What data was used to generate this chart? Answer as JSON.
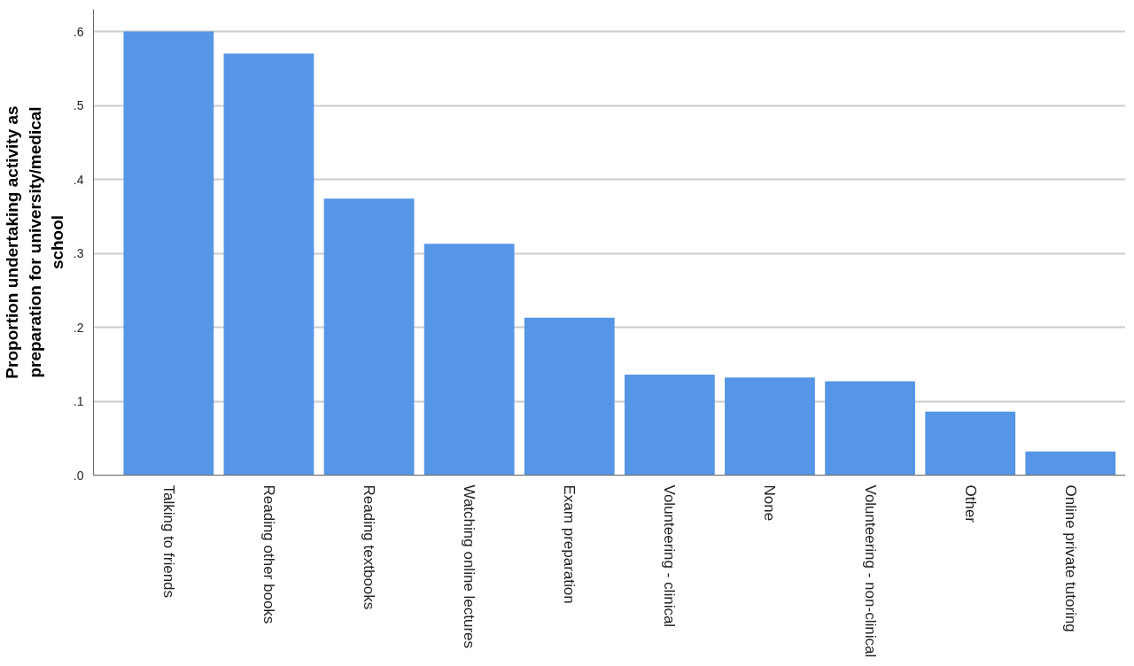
{
  "chart_data": {
    "type": "bar",
    "ylabel": "Proportion undertaking activity as preparation for university/medical school",
    "categories": [
      "Talking to friends",
      "Reading other books",
      "Reading textbooks",
      "Watching online lectures",
      "Exam preparation",
      "Volunteering - clinical",
      "None",
      "Volunteering - non-clinical",
      "Other",
      "Online private tutoring"
    ],
    "values": [
      0.6,
      0.57,
      0.374,
      0.313,
      0.213,
      0.136,
      0.132,
      0.127,
      0.086,
      0.032
    ],
    "color": "#5596e6",
    "ylim": [
      0,
      0.63
    ],
    "yticks": [
      {
        "value": 0,
        "label": ".0"
      },
      {
        "value": 0.1,
        "label": ".1"
      },
      {
        "value": 0.2,
        "label": ".2"
      },
      {
        "value": 0.3,
        "label": ".3"
      },
      {
        "value": 0.4,
        "label": ".4"
      },
      {
        "value": 0.5,
        "label": ".5"
      },
      {
        "value": 0.6,
        "label": ".6"
      }
    ],
    "grid": "y"
  }
}
